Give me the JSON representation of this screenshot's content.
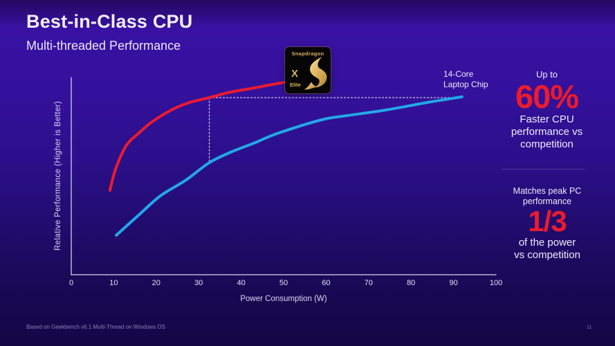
{
  "slide": {
    "title": "Best-in-Class CPU",
    "subtitle": "Multi-threaded Performance",
    "footnote": "Based on Geekbench v6.1 Multi-Thread on Windows OS",
    "page_number": "11"
  },
  "badge": {
    "brand": "Snapdragon",
    "series": "X",
    "tier": "Elite"
  },
  "callouts": {
    "competitor_label": "14-Core\nLaptop Chip",
    "stat1": {
      "prefix": "Up to",
      "value": "60%",
      "description": "Faster CPU\nperformance vs\ncompetition"
    },
    "stat2": {
      "prefix": "Matches peak PC\nperformance",
      "value": "1/3",
      "description": "of the power\nvs competition"
    }
  },
  "colors": {
    "snapdragon_curve": "#ec1b2d",
    "competitor_curve": "#22a8e8",
    "accent_red": "#ec1b2d",
    "axis": "rgba(216,210,240,0.85)",
    "dashed_guide": "rgba(240,237,252,0.9)",
    "badge_gold": "#dcb05e",
    "background_top": "#3811a3",
    "background_bottom": "#140645"
  },
  "chart_data": {
    "type": "line",
    "title": "",
    "xlabel": "Power Consumption (W)",
    "ylabel": "Relative Performance (Higher is Better)",
    "xlim": [
      0,
      100
    ],
    "ylim": [
      0,
      100
    ],
    "xticks": [
      0,
      10,
      20,
      30,
      40,
      50,
      60,
      70,
      80,
      90,
      100
    ],
    "grid": false,
    "legend_position": "none",
    "series": [
      {
        "name": "Snapdragon X Elite",
        "color": "#ec1b2d",
        "x": [
          9.1,
          10.5,
          13,
          16,
          19,
          24,
          28,
          32.5,
          37.5,
          43,
          50,
          55
        ],
        "y": [
          42.8,
          54,
          65.6,
          72,
          77.5,
          84,
          87.4,
          89.8,
          92.6,
          94.7,
          97.5,
          98.6
        ]
      },
      {
        "name": "14-Core Laptop Chip",
        "color": "#22a8e8",
        "x": [
          10.6,
          16,
          21,
          27,
          32.5,
          37.5,
          43,
          48.5,
          59,
          65,
          74,
          84,
          92
        ],
        "y": [
          20,
          30.5,
          40,
          48,
          56.8,
          62.1,
          66.7,
          71.6,
          78.6,
          80.7,
          83.5,
          87.4,
          90.2
        ]
      }
    ],
    "annotations": {
      "dashed_vertical": {
        "x": 32.5,
        "y_from": 56.8,
        "y_to": 89.8
      },
      "dashed_horizontal": {
        "y": 89.8,
        "x_from": 32.5,
        "x_to": 92
      }
    }
  }
}
